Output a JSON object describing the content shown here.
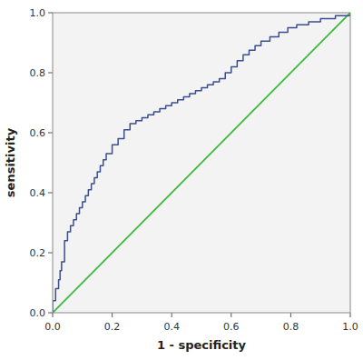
{
  "chart_data": {
    "type": "line",
    "xlabel": "1 - specificity",
    "ylabel": "sensitivity",
    "xlim": [
      0.0,
      1.0
    ],
    "ylim": [
      0.0,
      1.0
    ],
    "xticks": [
      {
        "value": 0.0,
        "label": "0.0"
      },
      0.2,
      0.4,
      0.6,
      0.8,
      {
        "value": 1.0,
        "label": "1.0"
      }
    ],
    "yticks": [
      {
        "value": 0.0,
        "label": "0.0"
      },
      0.2,
      0.4,
      0.6,
      0.8,
      {
        "value": 1.0,
        "label": "1.0"
      }
    ],
    "grid": false,
    "series": [
      {
        "color": "#3cb83c",
        "x": [
          0,
          1
        ],
        "values": [
          0,
          1
        ]
      },
      {
        "color": "#3a4f8f",
        "x": [
          0.0,
          0.0,
          0.01,
          0.01,
          0.02,
          0.02,
          0.025,
          0.025,
          0.03,
          0.03,
          0.04,
          0.04,
          0.05,
          0.05,
          0.06,
          0.06,
          0.07,
          0.07,
          0.08,
          0.08,
          0.09,
          0.09,
          0.1,
          0.1,
          0.11,
          0.11,
          0.12,
          0.12,
          0.13,
          0.13,
          0.14,
          0.14,
          0.15,
          0.15,
          0.16,
          0.16,
          0.17,
          0.17,
          0.18,
          0.18,
          0.2,
          0.2,
          0.22,
          0.22,
          0.24,
          0.24,
          0.26,
          0.26,
          0.28,
          0.28,
          0.3,
          0.3,
          0.32,
          0.32,
          0.34,
          0.34,
          0.36,
          0.36,
          0.38,
          0.38,
          0.4,
          0.4,
          0.42,
          0.42,
          0.44,
          0.44,
          0.46,
          0.46,
          0.48,
          0.48,
          0.5,
          0.5,
          0.52,
          0.52,
          0.54,
          0.54,
          0.56,
          0.56,
          0.58,
          0.58,
          0.6,
          0.6,
          0.62,
          0.62,
          0.64,
          0.64,
          0.66,
          0.66,
          0.68,
          0.68,
          0.7,
          0.7,
          0.73,
          0.73,
          0.76,
          0.76,
          0.79,
          0.79,
          0.82,
          0.82,
          0.86,
          0.86,
          0.9,
          0.9,
          0.95,
          0.95,
          1.0,
          1.0
        ],
        "values": [
          0.0,
          0.04,
          0.04,
          0.08,
          0.08,
          0.11,
          0.11,
          0.14,
          0.14,
          0.17,
          0.17,
          0.24,
          0.24,
          0.27,
          0.27,
          0.29,
          0.29,
          0.31,
          0.31,
          0.33,
          0.33,
          0.35,
          0.35,
          0.37,
          0.37,
          0.39,
          0.39,
          0.41,
          0.41,
          0.43,
          0.43,
          0.45,
          0.45,
          0.47,
          0.47,
          0.49,
          0.49,
          0.51,
          0.51,
          0.53,
          0.53,
          0.56,
          0.56,
          0.58,
          0.58,
          0.61,
          0.61,
          0.63,
          0.63,
          0.64,
          0.64,
          0.65,
          0.65,
          0.66,
          0.66,
          0.67,
          0.67,
          0.68,
          0.68,
          0.69,
          0.69,
          0.7,
          0.7,
          0.71,
          0.71,
          0.72,
          0.72,
          0.73,
          0.73,
          0.74,
          0.74,
          0.75,
          0.75,
          0.76,
          0.76,
          0.77,
          0.77,
          0.78,
          0.78,
          0.8,
          0.8,
          0.82,
          0.82,
          0.84,
          0.84,
          0.86,
          0.86,
          0.875,
          0.875,
          0.89,
          0.89,
          0.905,
          0.905,
          0.92,
          0.92,
          0.935,
          0.935,
          0.95,
          0.95,
          0.96,
          0.96,
          0.97,
          0.97,
          0.98,
          0.98,
          0.99,
          0.99,
          1.0
        ]
      }
    ]
  }
}
